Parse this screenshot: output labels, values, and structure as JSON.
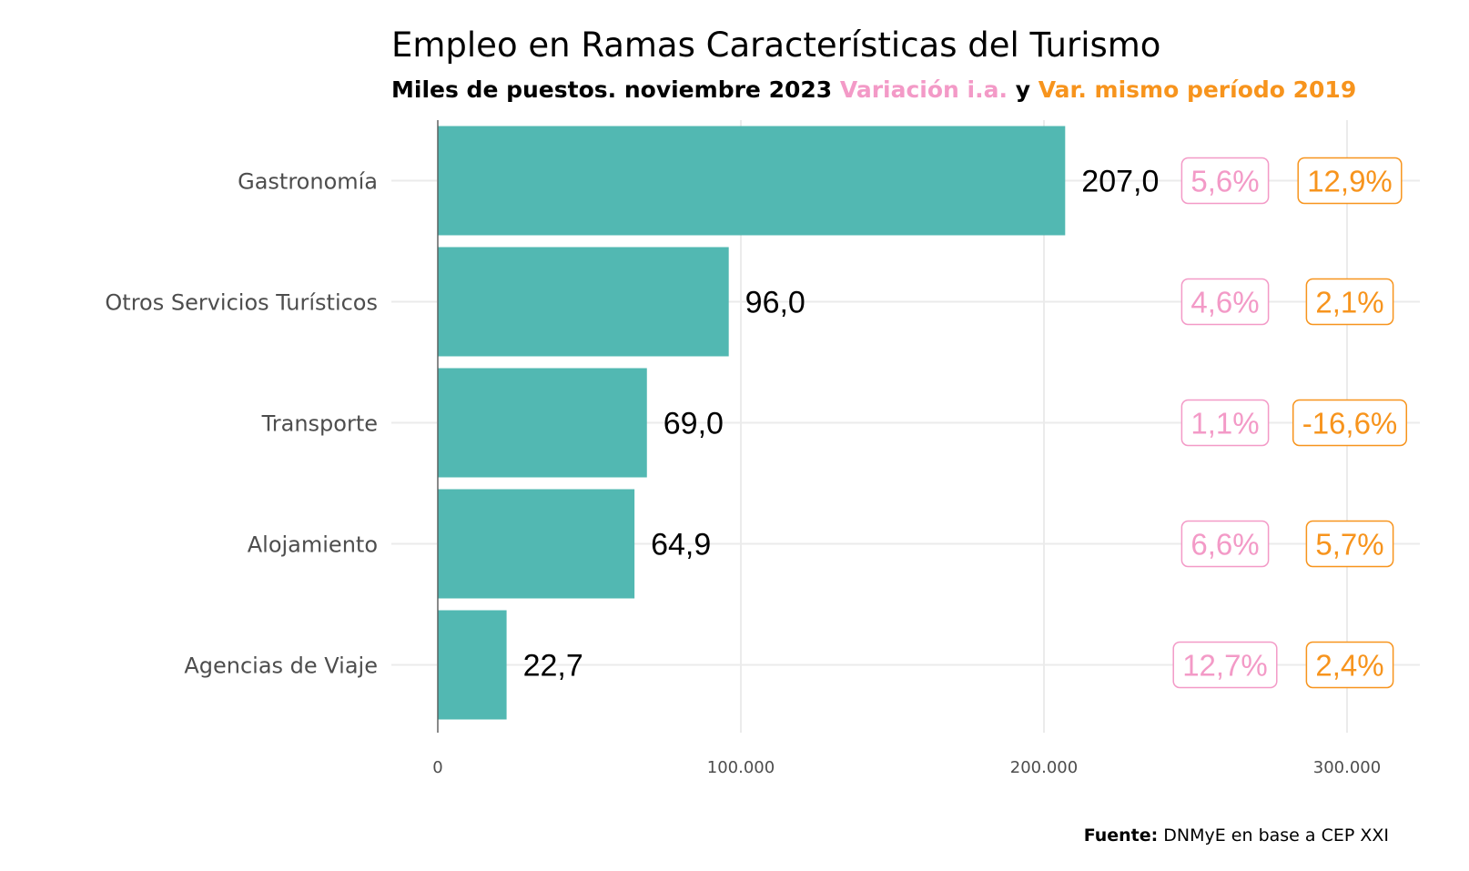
{
  "chart_data": {
    "type": "bar",
    "orientation": "horizontal",
    "title": "Empleo en Ramas Características del Turismo",
    "subtitle": {
      "part1": "Miles de puestos. noviembre 2023 ",
      "part2": "Variación i.a.",
      "part3": " y ",
      "part4": "Var. mismo período 2019"
    },
    "categories": [
      "Gastronomía",
      "Otros Servicios Turísticos",
      "Transporte",
      "Alojamiento",
      "Agencias de Viaje"
    ],
    "values": [
      207000,
      96000,
      69000,
      64900,
      22700
    ],
    "value_labels": [
      "207,0",
      "96,0",
      "69,0",
      "64,9",
      "22,7"
    ],
    "var_ia": [
      "5,6%",
      "4,6%",
      "1,1%",
      "6,6%",
      "12,7%"
    ],
    "var_2019": [
      "12,9%",
      "2,1%",
      "-16,6%",
      "5,7%",
      "2,4%"
    ],
    "xlim": [
      0,
      300000
    ],
    "xticks": [
      0,
      100000,
      200000,
      300000
    ],
    "xtick_labels": [
      "0",
      "100.000",
      "200.000",
      "300.000"
    ],
    "grid": true,
    "source_label": "Fuente:",
    "source_text": " DNMyE en base a CEP XXI",
    "colors": {
      "bar": "#52b8b2",
      "var_ia": "#f39ac7",
      "var_2019": "#f7941d",
      "grid": "#ebebeb"
    }
  }
}
